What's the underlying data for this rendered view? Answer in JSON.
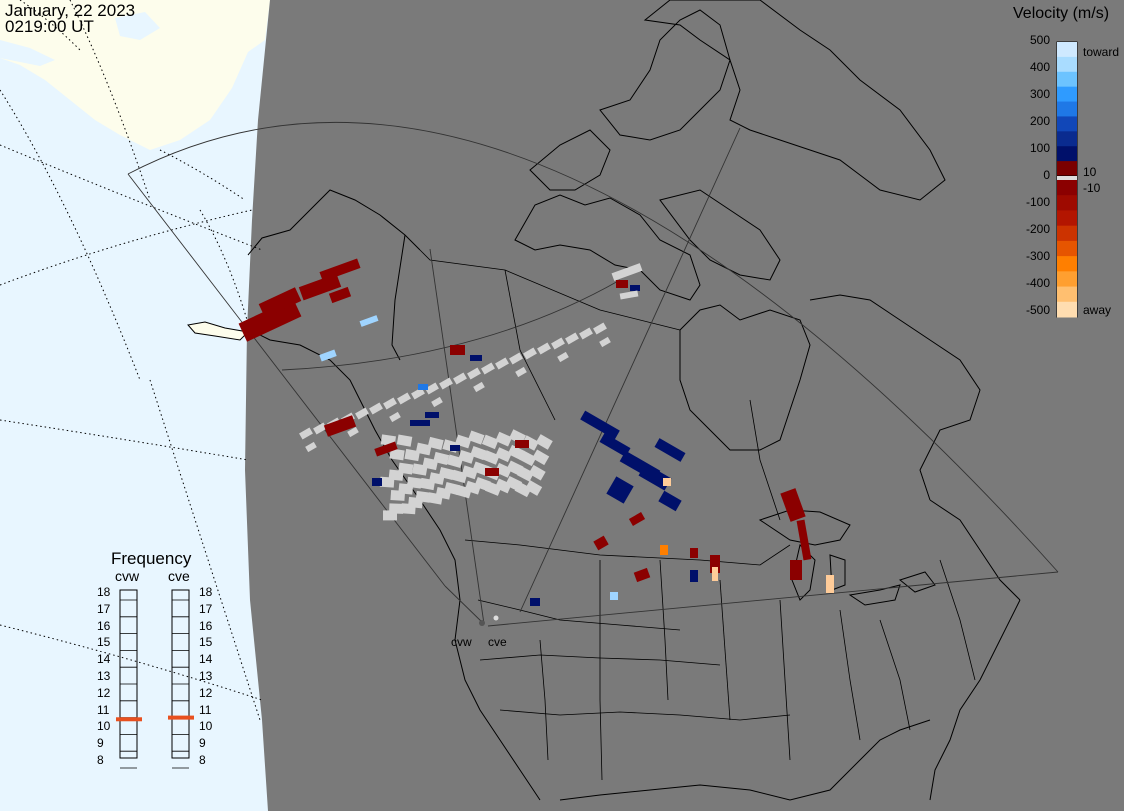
{
  "timestamp": {
    "date": "January, 22 2023",
    "time": "0219:00 UT"
  },
  "legend": {
    "title": "Velocity (m/s)",
    "ticks": [
      "500",
      "400",
      "300",
      "200",
      "100",
      "0",
      "-100",
      "-200",
      "-300",
      "-400",
      "-500"
    ],
    "toward_label": "toward",
    "away_label": "away",
    "inner_pos": "10",
    "inner_neg": "-10",
    "colors": [
      "#cfe9ff",
      "#a9dcff",
      "#6cc3ff",
      "#2f9bff",
      "#1f78e6",
      "#1147b8",
      "#0a2b8f",
      "#00106a",
      "#7a0000",
      "#8b0000",
      "#9e0a00",
      "#b31500",
      "#cc3300",
      "#e65500",
      "#ff7f00",
      "#ff9f30",
      "#ffbf70",
      "#ffddb0"
    ]
  },
  "frequency": {
    "title": "Frequency",
    "radars": [
      "cvw",
      "cve"
    ],
    "mhz_labels": [
      "18",
      "17",
      "16",
      "15",
      "14",
      "13",
      "12",
      "11",
      "10",
      "9",
      "8"
    ],
    "current_mhz": {
      "cvw": 10.9,
      "cve": 11.0
    },
    "marker_color": "#e8501f"
  },
  "map": {
    "radar_labels": [
      "cvw",
      "cve"
    ],
    "night_color": "#7a7a7a",
    "land_day_color": "#fdfdec",
    "ocean_day_color": "#e8f6ff",
    "gray_scatter_color": "#d3d3d3"
  }
}
